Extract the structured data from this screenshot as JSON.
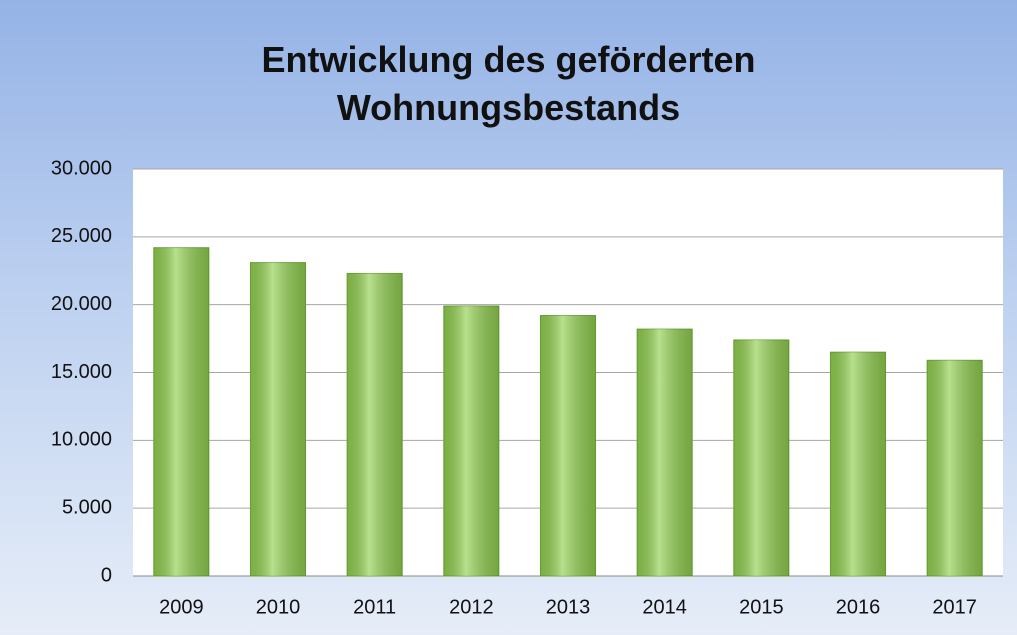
{
  "chart_data": {
    "type": "bar",
    "title": "Entwicklung des geförderten Wohnungsbestands",
    "categories": [
      "2009",
      "2010",
      "2011",
      "2012",
      "2013",
      "2014",
      "2015",
      "2016",
      "2017"
    ],
    "values": [
      24200,
      23100,
      22300,
      19900,
      19200,
      18200,
      17400,
      16500,
      15900
    ],
    "color": "#92d050",
    "ylim": [
      0,
      30000
    ],
    "yticks": [
      0,
      {
        "value": 5000,
        "label": "5.000"
      },
      {
        "value": 10000,
        "label": "10.000"
      },
      {
        "value": 15000,
        "label": "15.000"
      },
      {
        "value": 20000,
        "label": "20.000"
      },
      {
        "value": 25000,
        "label": "25.000"
      },
      {
        "value": 30000,
        "label": "30.000"
      }
    ],
    "grid": true
  }
}
